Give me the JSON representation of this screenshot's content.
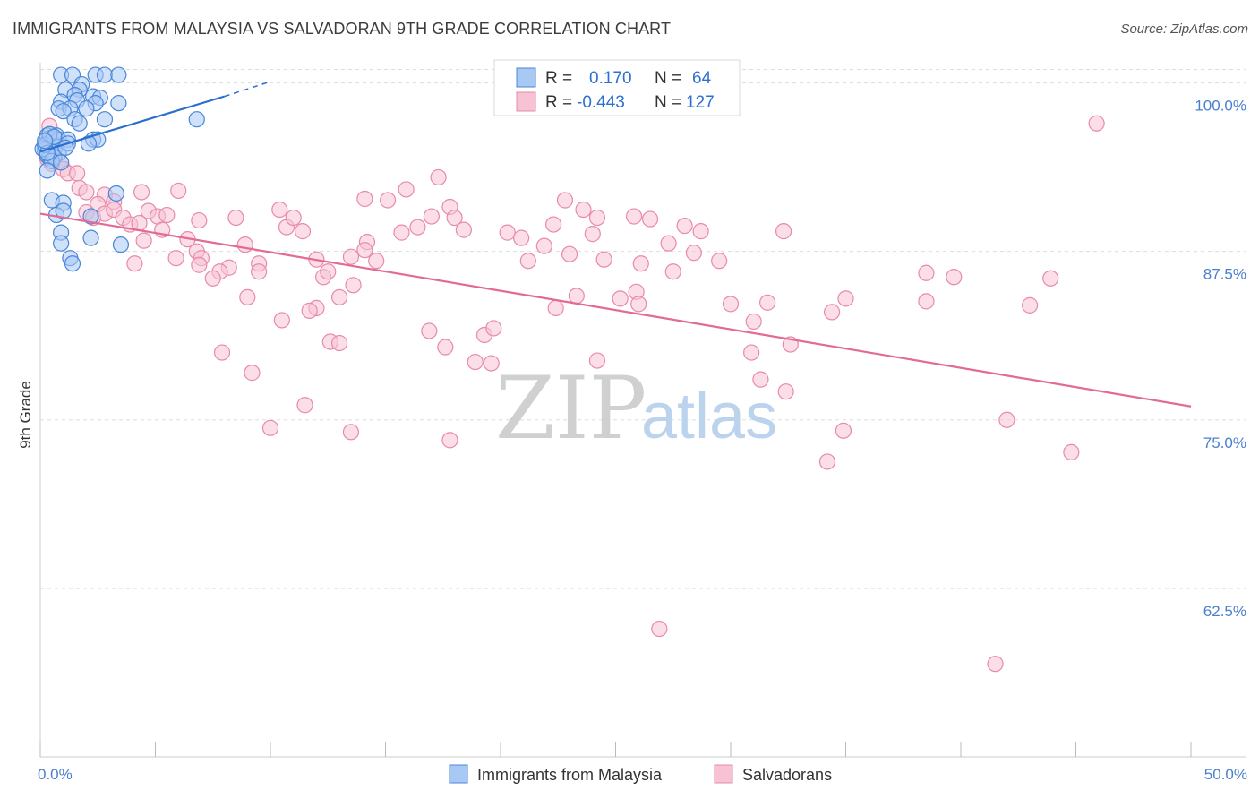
{
  "header": {
    "title": "IMMIGRANTS FROM MALAYSIA VS SALVADORAN 9TH GRADE CORRELATION CHART",
    "source": "Source: ZipAtlas.com"
  },
  "watermark": {
    "zip": "ZIP",
    "atlas": "atlas"
  },
  "colors": {
    "blue_fill": "#a9c9f5",
    "blue_stroke": "#4a86d8",
    "blue_line": "#2a6fd0",
    "pink_fill": "#f7c3d4",
    "pink_stroke": "#e88aa9",
    "pink_line": "#e36a95",
    "axis_text": "#4a7fcf",
    "grid": "#dddddd"
  },
  "legend": {
    "r_label": "R =",
    "n_label": "N =",
    "series": [
      {
        "r": "0.170",
        "n": "64"
      },
      {
        "r": "-0.443",
        "n": "127"
      }
    ]
  },
  "bottom_legend": [
    "Immigrants from Malaysia",
    "Salvadorans"
  ],
  "chart_data": {
    "type": "scatter",
    "title": "IMMIGRANTS FROM MALAYSIA VS SALVADORAN 9TH GRADE CORRELATION CHART",
    "xlabel": "",
    "ylabel": "9th Grade",
    "xlim": [
      0,
      50
    ],
    "ylim": [
      50,
      101.5
    ],
    "x_tick_labels": [
      {
        "value": 0,
        "label": "0.0%"
      },
      {
        "value": 50,
        "label": "50.0%"
      }
    ],
    "x_minor_ticks": [
      0,
      5,
      10,
      15,
      20,
      25,
      30,
      35,
      40,
      45,
      50
    ],
    "y_ticks": [
      {
        "value": 100,
        "label": "100.0%"
      },
      {
        "value": 87.5,
        "label": "87.5%"
      },
      {
        "value": 75,
        "label": "75.0%"
      },
      {
        "value": 62.5,
        "label": "62.5%"
      }
    ],
    "series": [
      {
        "name": "Immigrants from Malaysia",
        "r": 0.17,
        "n": 64,
        "trend": {
          "x": [
            0,
            8
          ],
          "y": [
            94.9,
            99.0
          ],
          "dashed_to": [
            10,
            100.1
          ]
        },
        "points": [
          [
            0.9,
            100.6
          ],
          [
            1.4,
            100.6
          ],
          [
            2.4,
            100.6
          ],
          [
            2.8,
            100.6
          ],
          [
            3.4,
            100.6
          ],
          [
            1.8,
            99.9
          ],
          [
            1.1,
            99.5
          ],
          [
            1.7,
            99.5
          ],
          [
            1.5,
            99.1
          ],
          [
            2.3,
            99.0
          ],
          [
            2.6,
            98.9
          ],
          [
            1.6,
            98.7
          ],
          [
            0.9,
            98.6
          ],
          [
            2.4,
            98.5
          ],
          [
            3.4,
            98.5
          ],
          [
            0.8,
            98.1
          ],
          [
            1.3,
            98.1
          ],
          [
            2.0,
            98.1
          ],
          [
            1.0,
            97.9
          ],
          [
            2.8,
            97.3
          ],
          [
            1.5,
            97.3
          ],
          [
            1.7,
            97.0
          ],
          [
            6.8,
            97.3
          ],
          [
            0.3,
            96.1
          ],
          [
            0.7,
            96.1
          ],
          [
            0.4,
            95.9
          ],
          [
            0.8,
            95.8
          ],
          [
            1.2,
            95.8
          ],
          [
            0.3,
            95.5
          ],
          [
            2.3,
            95.8
          ],
          [
            2.5,
            95.8
          ],
          [
            0.4,
            95.3
          ],
          [
            0.6,
            95.3
          ],
          [
            0.7,
            95.3
          ],
          [
            0.2,
            95.0
          ],
          [
            0.5,
            94.9
          ],
          [
            0.8,
            94.8
          ],
          [
            0.3,
            94.6
          ],
          [
            0.4,
            94.5
          ],
          [
            0.6,
            94.5
          ],
          [
            0.5,
            94.2
          ],
          [
            2.1,
            95.5
          ],
          [
            1.2,
            95.5
          ],
          [
            0.9,
            94.1
          ],
          [
            0.3,
            93.5
          ],
          [
            0.1,
            95.1
          ],
          [
            0.2,
            95.4
          ],
          [
            0.3,
            94.8
          ],
          [
            0.5,
            91.3
          ],
          [
            1.0,
            91.1
          ],
          [
            3.3,
            91.8
          ],
          [
            0.7,
            90.2
          ],
          [
            1.0,
            90.5
          ],
          [
            2.2,
            90.1
          ],
          [
            0.9,
            88.9
          ],
          [
            2.2,
            88.5
          ],
          [
            0.9,
            88.1
          ],
          [
            3.5,
            88.0
          ],
          [
            1.3,
            87.0
          ],
          [
            1.4,
            86.6
          ],
          [
            0.4,
            96.2
          ],
          [
            0.6,
            96.0
          ],
          [
            0.2,
            95.7
          ],
          [
            1.1,
            95.2
          ]
        ]
      },
      {
        "name": "Salvadorans",
        "r": -0.443,
        "n": 127,
        "trend": {
          "x": [
            0,
            50
          ],
          "y": [
            90.3,
            76.0
          ]
        },
        "points": [
          [
            0.4,
            96.8
          ],
          [
            0.7,
            95.8
          ],
          [
            0.9,
            94.1
          ],
          [
            1.0,
            93.6
          ],
          [
            1.2,
            93.3
          ],
          [
            0.3,
            94.4
          ],
          [
            0.5,
            94.0
          ],
          [
            1.6,
            93.3
          ],
          [
            1.7,
            92.2
          ],
          [
            2.0,
            91.9
          ],
          [
            2.8,
            91.7
          ],
          [
            3.2,
            91.2
          ],
          [
            2.5,
            91.0
          ],
          [
            2.0,
            90.4
          ],
          [
            2.3,
            90.0
          ],
          [
            2.8,
            90.3
          ],
          [
            3.2,
            90.6
          ],
          [
            3.6,
            90.0
          ],
          [
            3.9,
            89.5
          ],
          [
            4.3,
            89.6
          ],
          [
            4.4,
            91.9
          ],
          [
            4.7,
            90.5
          ],
          [
            5.1,
            90.1
          ],
          [
            5.5,
            90.2
          ],
          [
            6.0,
            92.0
          ],
          [
            5.3,
            89.1
          ],
          [
            4.5,
            88.3
          ],
          [
            6.4,
            88.4
          ],
          [
            6.9,
            89.8
          ],
          [
            8.5,
            90.0
          ],
          [
            8.9,
            88.0
          ],
          [
            6.8,
            87.5
          ],
          [
            7.0,
            87.0
          ],
          [
            5.9,
            87.0
          ],
          [
            4.1,
            86.6
          ],
          [
            8.2,
            86.3
          ],
          [
            7.8,
            86.0
          ],
          [
            7.5,
            85.5
          ],
          [
            6.9,
            86.5
          ],
          [
            9.5,
            86.6
          ],
          [
            9.5,
            86.0
          ],
          [
            9.0,
            84.1
          ],
          [
            10.4,
            90.6
          ],
          [
            10.7,
            89.3
          ],
          [
            11.0,
            90.0
          ],
          [
            11.4,
            89.0
          ],
          [
            12.0,
            86.9
          ],
          [
            12.3,
            85.6
          ],
          [
            12.5,
            86.0
          ],
          [
            13.0,
            84.1
          ],
          [
            13.6,
            85.0
          ],
          [
            12.0,
            83.3
          ],
          [
            11.7,
            83.1
          ],
          [
            10.5,
            82.4
          ],
          [
            12.6,
            80.8
          ],
          [
            13.0,
            80.7
          ],
          [
            9.2,
            78.5
          ],
          [
            7.9,
            80.0
          ],
          [
            11.5,
            76.1
          ],
          [
            10.0,
            74.4
          ],
          [
            13.5,
            74.1
          ],
          [
            14.1,
            91.4
          ],
          [
            15.1,
            91.3
          ],
          [
            14.2,
            88.2
          ],
          [
            13.5,
            87.1
          ],
          [
            14.6,
            86.8
          ],
          [
            14.1,
            87.6
          ],
          [
            15.9,
            92.1
          ],
          [
            15.7,
            88.9
          ],
          [
            16.4,
            89.3
          ],
          [
            17.3,
            93.0
          ],
          [
            17.0,
            90.1
          ],
          [
            17.8,
            90.8
          ],
          [
            18.0,
            90.0
          ],
          [
            18.4,
            89.1
          ],
          [
            17.6,
            80.4
          ],
          [
            16.9,
            81.6
          ],
          [
            19.3,
            81.3
          ],
          [
            19.7,
            81.8
          ],
          [
            20.3,
            88.9
          ],
          [
            20.9,
            88.5
          ],
          [
            21.2,
            86.8
          ],
          [
            21.9,
            87.9
          ],
          [
            22.3,
            89.5
          ],
          [
            23.0,
            87.3
          ],
          [
            22.8,
            91.3
          ],
          [
            23.6,
            90.6
          ],
          [
            24.2,
            90.0
          ],
          [
            24.0,
            88.8
          ],
          [
            24.5,
            86.9
          ],
          [
            25.8,
            90.1
          ],
          [
            26.5,
            89.9
          ],
          [
            26.1,
            86.6
          ],
          [
            25.9,
            84.5
          ],
          [
            25.2,
            84.0
          ],
          [
            23.3,
            84.2
          ],
          [
            22.4,
            83.3
          ],
          [
            26.0,
            83.6
          ],
          [
            24.2,
            79.4
          ],
          [
            18.9,
            79.3
          ],
          [
            19.6,
            79.2
          ],
          [
            17.8,
            73.5
          ],
          [
            27.3,
            88.1
          ],
          [
            27.5,
            86.0
          ],
          [
            28.0,
            89.4
          ],
          [
            28.4,
            87.4
          ],
          [
            28.7,
            89.0
          ],
          [
            29.5,
            86.8
          ],
          [
            30.0,
            83.6
          ],
          [
            31.0,
            82.3
          ],
          [
            31.6,
            83.7
          ],
          [
            30.9,
            80.0
          ],
          [
            31.3,
            78.0
          ],
          [
            32.4,
            77.1
          ],
          [
            32.6,
            80.6
          ],
          [
            34.4,
            83.0
          ],
          [
            35.0,
            84.0
          ],
          [
            34.9,
            74.2
          ],
          [
            38.5,
            85.9
          ],
          [
            39.7,
            85.6
          ],
          [
            38.5,
            83.8
          ],
          [
            43.0,
            83.5
          ],
          [
            43.9,
            85.5
          ],
          [
            42.0,
            75.0
          ],
          [
            45.9,
            97.0
          ],
          [
            44.8,
            72.6
          ],
          [
            34.2,
            71.9
          ],
          [
            32.3,
            89.0
          ],
          [
            41.5,
            56.9
          ],
          [
            26.9,
            59.5
          ]
        ]
      }
    ]
  }
}
